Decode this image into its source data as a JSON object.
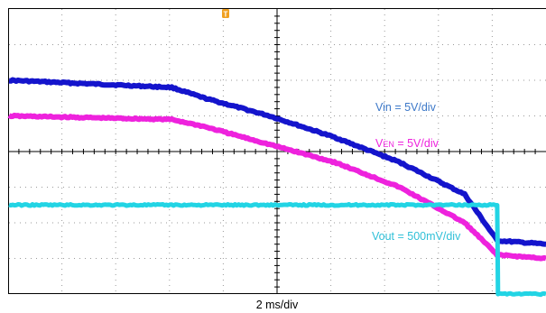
{
  "screen": {
    "time_scale": "2 ms/div",
    "trigger_marker": "T"
  },
  "colors": {
    "vin": "#1414cc",
    "ven": "#ee22dd",
    "vout": "#22d4e4",
    "vin_label": "#3c78c8",
    "ven_label": "#ee22dd",
    "vout_label": "#30c0d8",
    "grid": "#9a9a9a",
    "trigger": "#f0a020"
  },
  "chart_data": {
    "type": "line",
    "title": "",
    "xlabel": "2 ms/div",
    "ylabel": "",
    "xlim": [
      -30,
      3
    ],
    "ylim": [
      0,
      0.8
    ],
    "grid": true,
    "series": [
      {
        "name": "Vin = 5V/div",
        "scale": "5V/div",
        "x": [
          -30,
          -20,
          -18,
          -14,
          -10,
          -6,
          -2,
          0,
          3
        ],
        "y": [
          0.6,
          0.58,
          0.55,
          0.5,
          0.44,
          0.37,
          0.28,
          0.15,
          0.14
        ]
      },
      {
        "name": "VEN = 5V/div",
        "scale": "5V/div",
        "x": [
          -30,
          -20,
          -18,
          -14,
          -10,
          -6,
          -2,
          0,
          3
        ],
        "y": [
          0.5,
          0.49,
          0.47,
          0.42,
          0.37,
          0.3,
          0.2,
          0.11,
          0.1
        ]
      },
      {
        "name": "Vout = 500mV/div",
        "scale": "500mV/div",
        "x": [
          -30,
          -20,
          -10,
          0,
          0.05,
          3
        ],
        "y": [
          0.25,
          0.25,
          0.25,
          0.25,
          0.0,
          0.0
        ]
      }
    ]
  }
}
